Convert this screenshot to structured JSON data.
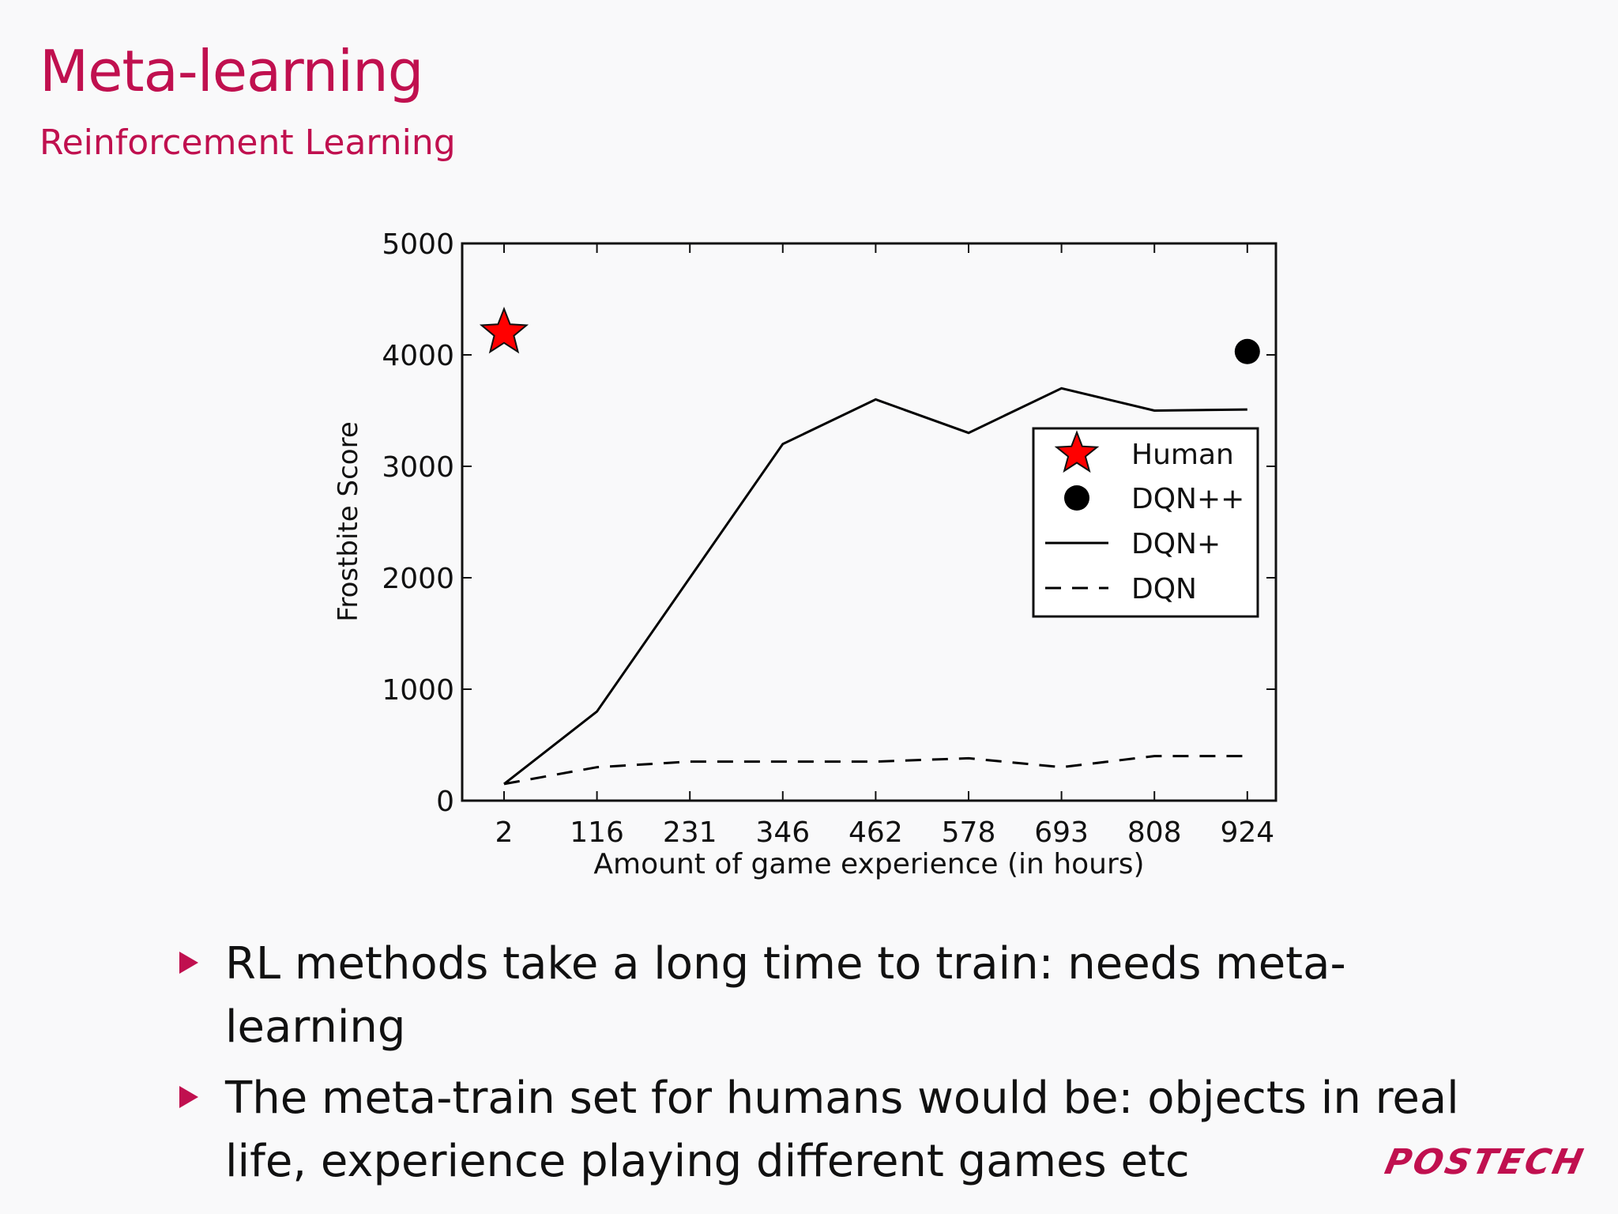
{
  "header": {
    "title": "Meta-learning",
    "subtitle": "Reinforcement Learning"
  },
  "chart_data": {
    "type": "line",
    "xlabel": "Amount of game experience (in hours)",
    "ylabel": "Frostbite Score",
    "categories": [
      "2",
      "116",
      "231",
      "346",
      "462",
      "578",
      "693",
      "808",
      "924"
    ],
    "ylim": [
      0,
      5000
    ],
    "yticks": [
      "0",
      "1000",
      "2000",
      "3000",
      "4000",
      "5000"
    ],
    "legend_position": "right",
    "series": [
      {
        "name": "Human",
        "style": "star-marker",
        "color": "#ff0000",
        "points": [
          {
            "x": "2",
            "y": 4200
          }
        ]
      },
      {
        "name": "DQN++",
        "style": "circle-marker",
        "color": "#000000",
        "points": [
          {
            "x": "924",
            "y": 4030
          }
        ]
      },
      {
        "name": "DQN+",
        "style": "solid-line",
        "color": "#000000",
        "values": [
          150,
          800,
          2000,
          3200,
          3600,
          3300,
          3700,
          3500,
          3510
        ]
      },
      {
        "name": "DQN",
        "style": "dashed-line",
        "color": "#000000",
        "values": [
          150,
          300,
          350,
          350,
          350,
          380,
          300,
          400,
          400
        ]
      }
    ]
  },
  "bullets": [
    "RL methods take a long time to train: needs meta-learning",
    "The meta-train set for humans would be: objects in real life, experience playing different games etc"
  ],
  "footer": {
    "logo_text": "POSTECH"
  },
  "colors": {
    "accent": "#c0104f",
    "background": "#f9f9fa"
  }
}
